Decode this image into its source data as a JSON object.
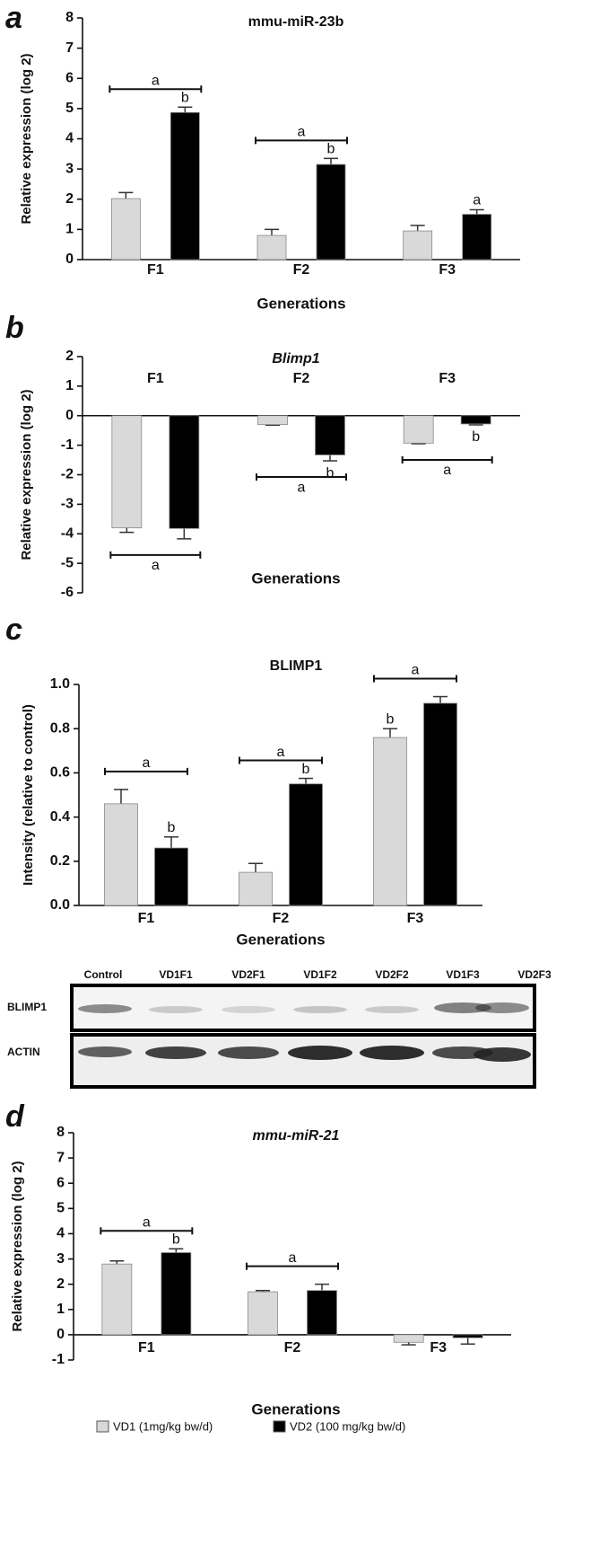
{
  "chart_data": [
    {
      "panel": "a",
      "type": "bar",
      "title": "mmu-miR-23b",
      "ylabel": "Relative expression (log 2)",
      "xlabel": "Generations",
      "categories": [
        "F1",
        "F2",
        "F3"
      ],
      "series": [
        {
          "color": "#d9d9d9",
          "values": [
            2.02,
            0.8,
            0.95
          ],
          "errors": [
            0.2,
            0.2,
            0.18
          ]
        },
        {
          "color": "#000000",
          "values": [
            4.87,
            3.15,
            1.5
          ],
          "errors": [
            0.18,
            0.2,
            0.15
          ]
        }
      ],
      "ylim": [
        0,
        8
      ],
      "yticks": [
        0,
        1,
        2,
        3,
        4,
        5,
        6,
        7,
        8
      ],
      "significance": [
        {
          "bracket": "a",
          "letters": [
            null,
            "b"
          ]
        },
        {
          "bracket": "a",
          "letters": [
            null,
            "b"
          ]
        },
        {
          "bracket": null,
          "letters": [
            null,
            "a"
          ]
        }
      ]
    },
    {
      "panel": "b",
      "type": "bar",
      "title": "Blimp1",
      "ylabel": "Relative expression (log 2)",
      "xlabel": "Generations",
      "categories": [
        "F1",
        "F2",
        "F3"
      ],
      "series": [
        {
          "color": "#d9d9d9",
          "values": [
            -3.8,
            -0.3,
            -0.93
          ],
          "errors": [
            0.15,
            0.02,
            0.02
          ]
        },
        {
          "color": "#000000",
          "values": [
            -3.82,
            -1.33,
            -0.28
          ],
          "errors": [
            0.35,
            0.2,
            0.03
          ]
        }
      ],
      "ylim": [
        -6,
        2
      ],
      "yticks": [
        -6,
        -5,
        -4,
        -3,
        -2,
        -1,
        0,
        1,
        2
      ],
      "significance": [
        {
          "bracket": "a",
          "letters": [
            null,
            null
          ]
        },
        {
          "bracket": "a",
          "letters": [
            null,
            "b"
          ]
        },
        {
          "bracket": "a",
          "letters": [
            null,
            "b"
          ]
        }
      ]
    },
    {
      "panel": "c",
      "type": "bar",
      "title": "BLIMP1",
      "ylabel": "Intensity (relative to control)",
      "xlabel": "Generations",
      "categories": [
        "F1",
        "F2",
        "F3"
      ],
      "series": [
        {
          "color": "#d9d9d9",
          "values": [
            0.46,
            0.15,
            0.76
          ],
          "errors": [
            0.065,
            0.04,
            0.04
          ]
        },
        {
          "color": "#000000",
          "values": [
            0.26,
            0.55,
            0.915
          ],
          "errors": [
            0.05,
            0.025,
            0.03
          ]
        }
      ],
      "ylim": [
        0,
        1
      ],
      "yticks": [
        {
          "value": 0,
          "label": "0.0"
        },
        0.2,
        0.4,
        0.6,
        0.8,
        {
          "value": 1,
          "label": "1.0"
        }
      ],
      "significance": [
        {
          "bracket": "a",
          "letters": [
            null,
            "b"
          ]
        },
        {
          "bracket": "a",
          "letters": [
            null,
            "b"
          ]
        },
        {
          "bracket": "a",
          "letters": [
            "b",
            null
          ]
        }
      ]
    },
    {
      "panel": "d",
      "type": "bar",
      "title": "mmu-miR-21",
      "ylabel": "Relative expression (log 2)",
      "xlabel": "Generations",
      "categories": [
        "F1",
        "F2",
        "F3"
      ],
      "series": [
        {
          "color": "#d9d9d9",
          "values": [
            2.8,
            1.7,
            -0.3
          ],
          "errors": [
            0.12,
            0.05,
            0.1
          ]
        },
        {
          "color": "#000000",
          "values": [
            3.25,
            1.75,
            -0.12
          ],
          "errors": [
            0.15,
            0.25,
            0.25
          ]
        }
      ],
      "ylim": [
        -1,
        8
      ],
      "yticks": [
        -1,
        0,
        1,
        2,
        3,
        4,
        5,
        6,
        7,
        8
      ],
      "significance": [
        {
          "bracket": "a",
          "letters": [
            null,
            "b"
          ]
        },
        {
          "bracket": "a",
          "letters": [
            null,
            null
          ]
        },
        {
          "bracket": null,
          "letters": [
            null,
            null
          ]
        }
      ]
    }
  ],
  "blot": {
    "lanes": [
      "Control",
      "VD1F1",
      "VD2F1",
      "VD1F2",
      "VD2F2",
      "VD1F3",
      "VD2F3"
    ],
    "rows": [
      "BLIMP1",
      "ACTIN"
    ]
  },
  "legend": [
    {
      "name": "VD1 (1mg/kg bw/d)",
      "color": "#d9d9d9"
    },
    {
      "name": "VD2 (100 mg/kg bw/d)",
      "color": "#000000"
    }
  ]
}
